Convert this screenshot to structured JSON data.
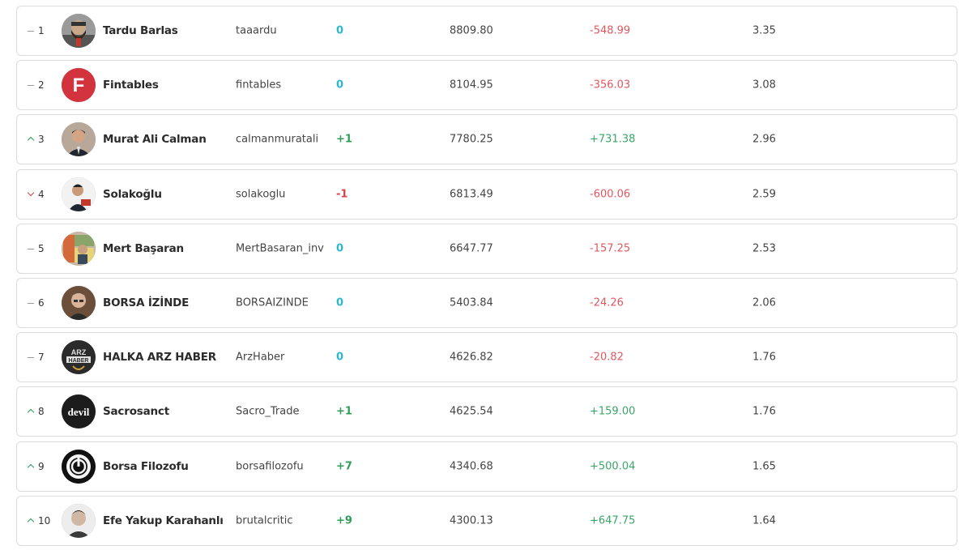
{
  "rows": [
    {
      "rank": "1",
      "trend": "same",
      "name": "Tardu Barlas",
      "handle": "taaardu",
      "change": "0",
      "change_type": "zero",
      "score": "8809.80",
      "delta": "-548.99",
      "delta_type": "neg",
      "ratio": "3.35",
      "avatar": "photo-bearded"
    },
    {
      "rank": "2",
      "trend": "same",
      "name": "Fintables",
      "handle": "fintables",
      "change": "0",
      "change_type": "zero",
      "score": "8104.95",
      "delta": "-356.03",
      "delta_type": "neg",
      "ratio": "3.08",
      "avatar": "logo-f",
      "avatar_text": "F"
    },
    {
      "rank": "3",
      "trend": "up",
      "name": "Murat Ali Calman",
      "handle": "calmanmuratali",
      "change": "+1",
      "change_type": "pos",
      "score": "7780.25",
      "delta": "+731.38",
      "delta_type": "pos",
      "ratio": "2.96",
      "avatar": "photo-suit"
    },
    {
      "rank": "4",
      "trend": "down",
      "name": "Solakoğlu",
      "handle": "solakoglu",
      "change": "-1",
      "change_type": "neg",
      "score": "6813.49",
      "delta": "-600.06",
      "delta_type": "neg",
      "ratio": "2.59",
      "avatar": "photo-speaker"
    },
    {
      "rank": "5",
      "trend": "same",
      "name": "Mert Başaran",
      "handle": "MertBasaran_inv",
      "change": "0",
      "change_type": "zero",
      "score": "6647.77",
      "delta": "-157.25",
      "delta_type": "neg",
      "ratio": "2.53",
      "avatar": "photo-shop"
    },
    {
      "rank": "6",
      "trend": "same",
      "name": "BORSA İZİNDE",
      "handle": "BORSAIZINDE",
      "change": "0",
      "change_type": "zero",
      "score": "5403.84",
      "delta": "-24.26",
      "delta_type": "neg",
      "ratio": "2.06",
      "avatar": "photo-elder"
    },
    {
      "rank": "7",
      "trend": "same",
      "name": "HALKA ARZ HABER",
      "handle": "ArzHaber",
      "change": "0",
      "change_type": "zero",
      "score": "4626.82",
      "delta": "-20.82",
      "delta_type": "neg",
      "ratio": "1.76",
      "avatar": "logo-arz",
      "avatar_text": "ARZ HABER"
    },
    {
      "rank": "8",
      "trend": "up",
      "name": "Sacrosanct",
      "handle": "Sacro_Trade",
      "change": "+1",
      "change_type": "pos",
      "score": "4625.54",
      "delta": "+159.00",
      "delta_type": "pos",
      "ratio": "1.76",
      "avatar": "logo-devil",
      "avatar_text": "devil"
    },
    {
      "rank": "9",
      "trend": "up",
      "name": "Borsa Filozofu",
      "handle": "borsafilozofu",
      "change": "+7",
      "change_type": "pos",
      "score": "4340.68",
      "delta": "+500.04",
      "delta_type": "pos",
      "ratio": "1.65",
      "avatar": "logo-power"
    },
    {
      "rank": "10",
      "trend": "up",
      "name": "Efe Yakup Karahanlı",
      "handle": "brutalcritic",
      "change": "+9",
      "change_type": "pos",
      "score": "4300.13",
      "delta": "+647.75",
      "delta_type": "pos",
      "ratio": "1.64",
      "avatar": "photo-young"
    }
  ]
}
